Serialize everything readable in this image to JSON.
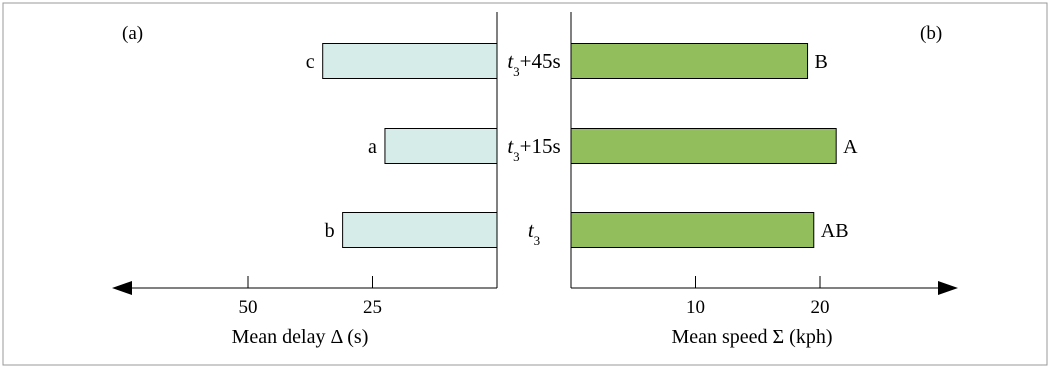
{
  "chart_data": [
    {
      "type": "bar",
      "orientation": "horizontal",
      "panel_label": "(a)",
      "xlabel": "Mean delay Δ (s)",
      "categories": [
        {
          "base": "t",
          "sub": "3",
          "suffix": "+45s"
        },
        {
          "base": "t",
          "sub": "3",
          "suffix": "+15s"
        },
        {
          "base": "t",
          "sub": "3",
          "suffix": ""
        }
      ],
      "values": [
        35,
        22.5,
        31
      ],
      "bar_labels": [
        "c",
        "a",
        "b"
      ],
      "xticks": [
        50,
        25
      ],
      "xlim": [
        0,
        75
      ],
      "direction": "leftward",
      "bar_color": "#d5ece9"
    },
    {
      "type": "bar",
      "orientation": "horizontal",
      "panel_label": "(b)",
      "xlabel": "Mean speed Σ (kph)",
      "categories": [
        {
          "base": "t",
          "sub": "3",
          "suffix": "+45s"
        },
        {
          "base": "t",
          "sub": "3",
          "suffix": "+15s"
        },
        {
          "base": "t",
          "sub": "3",
          "suffix": ""
        }
      ],
      "values": [
        19,
        21.3,
        19.5
      ],
      "bar_labels": [
        "B",
        "A",
        "AB"
      ],
      "xticks": [
        10,
        20
      ],
      "xlim": [
        0,
        30
      ],
      "direction": "rightward",
      "bar_color": "#92be5b"
    }
  ]
}
